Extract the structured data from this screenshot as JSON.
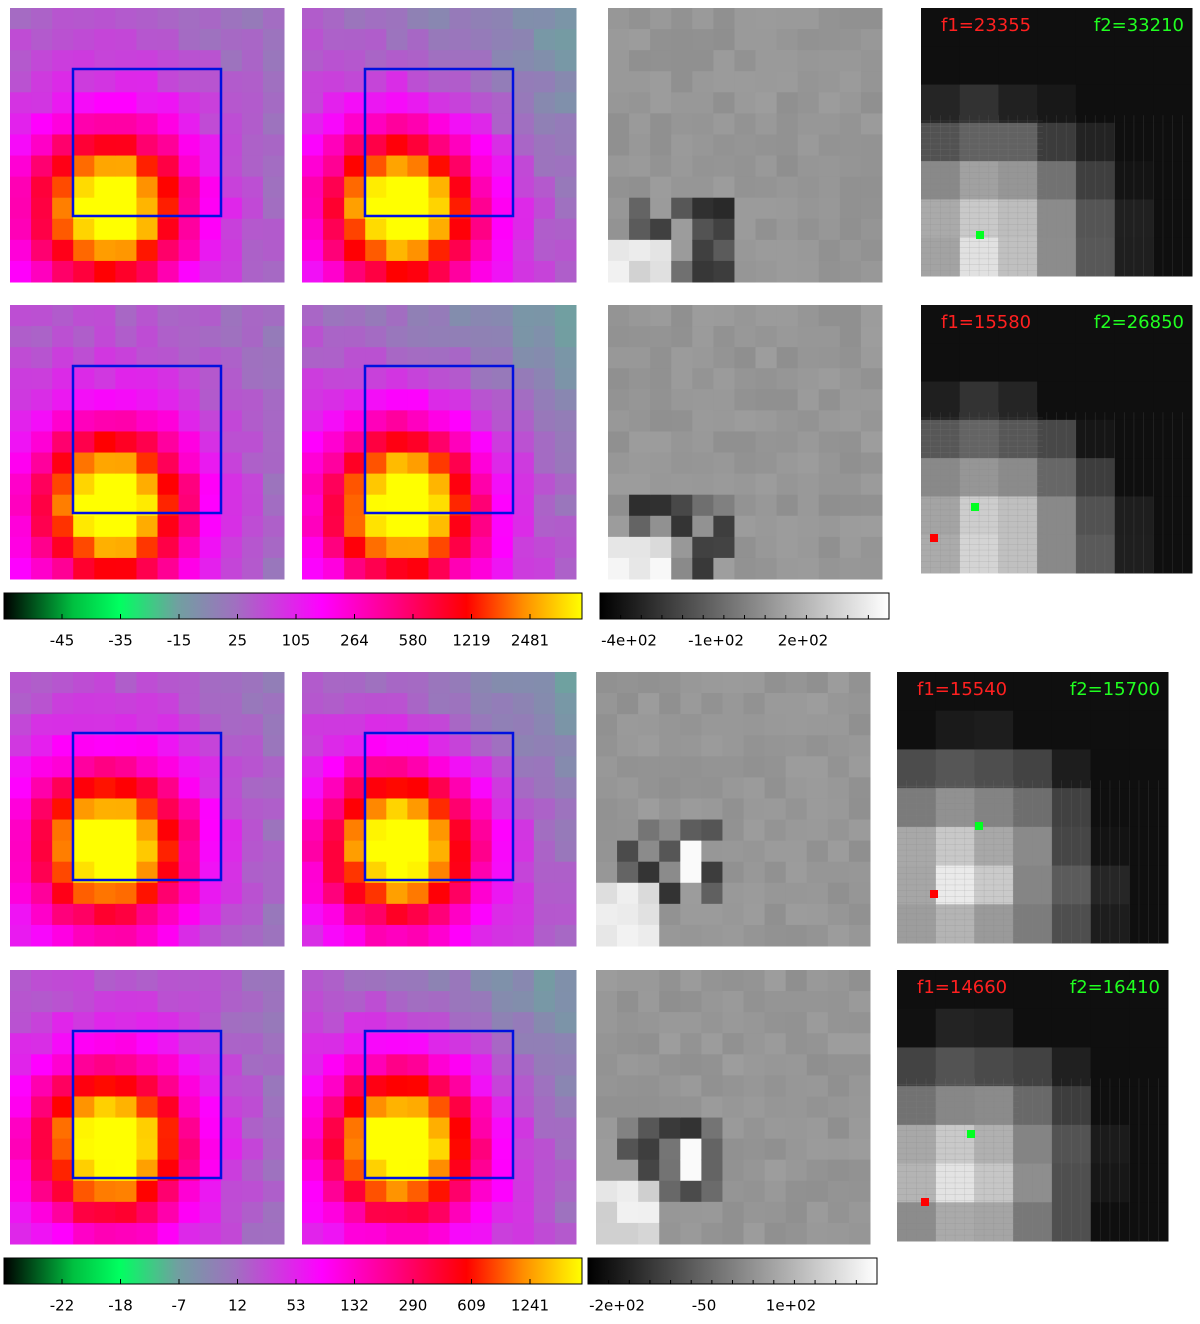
{
  "rows": [
    {
      "f1": "f1=23355",
      "f2": "f2=33210"
    },
    {
      "f1": "f1=15580",
      "f2": "f2=26850"
    },
    {
      "f1": "f1=15540",
      "f2": "f2=15700"
    },
    {
      "f1": "f1=14660",
      "f2": "f2=16410"
    }
  ],
  "colorbars": [
    {
      "color_ticks": [
        "-45",
        "-35",
        "-15",
        "25",
        "105",
        "264",
        "580",
        "1219",
        "2481"
      ],
      "gray_ticks": [
        "-4e+02",
        "-1e+02",
        "2e+02"
      ]
    },
    {
      "color_ticks": [
        "-22",
        "-18",
        "-7",
        "12",
        "53",
        "132",
        "290",
        "609",
        "1241"
      ],
      "gray_ticks": [
        "-2e+02",
        "-50",
        "1e+02"
      ]
    }
  ]
}
